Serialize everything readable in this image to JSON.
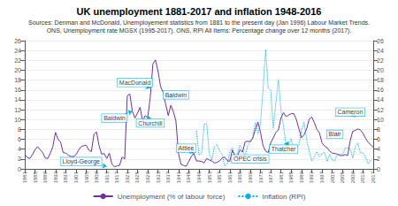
{
  "chart_data": {
    "type": "line",
    "title": "UK unemployment 1881-2017 and inflation 1948-2016",
    "subtitle": [
      "Sources: Denman and McDonald, Unemployement statistics from 1881 to the present day (Jan 1996) Labour Market Trends.",
      "ONS, Unemployment rate MGSX (1995-2017). ONS, RPI All Items: Percentage change over 12 months (2017)."
    ],
    "series": [
      {
        "name": "Unemployment (% of labour force)",
        "color": "#7030a0",
        "line_style": "solid",
        "x": [
          1881,
          1882,
          1883,
          1884,
          1885,
          1886,
          1887,
          1888,
          1889,
          1890,
          1891,
          1892,
          1893,
          1894,
          1895,
          1896,
          1897,
          1898,
          1899,
          1900,
          1901,
          1902,
          1903,
          1904,
          1905,
          1906,
          1907,
          1908,
          1909,
          1910,
          1911,
          1912,
          1913,
          1914,
          1915,
          1916,
          1917,
          1918,
          1919,
          1920,
          1921,
          1922,
          1923,
          1924,
          1925,
          1926,
          1927,
          1928,
          1929,
          1930,
          1931,
          1932,
          1933,
          1934,
          1935,
          1936,
          1937,
          1938,
          1939,
          1940,
          1941,
          1942,
          1943,
          1944,
          1945,
          1946,
          1947,
          1948,
          1949,
          1950,
          1951,
          1952,
          1953,
          1954,
          1955,
          1956,
          1957,
          1958,
          1959,
          1960,
          1961,
          1962,
          1963,
          1964,
          1965,
          1966,
          1967,
          1968,
          1969,
          1970,
          1971,
          1972,
          1973,
          1974,
          1975,
          1976,
          1977,
          1978,
          1979,
          1980,
          1981,
          1982,
          1983,
          1984,
          1985,
          1986,
          1987,
          1988,
          1989,
          1990,
          1991,
          1992,
          1993,
          1994,
          1995,
          1996,
          1997,
          1998,
          1999,
          2000,
          2001,
          2002,
          2003,
          2004,
          2005,
          2006,
          2007,
          2008,
          2009,
          2010,
          2011,
          2012,
          2013,
          2014,
          2015,
          2016,
          2017
        ],
        "values": [
          2.9,
          2.3,
          2.1,
          2.9,
          3.9,
          4.5,
          3.9,
          3.3,
          2.2,
          2.1,
          3.2,
          4.6,
          7.4,
          6.0,
          5.4,
          3.3,
          3.2,
          2.8,
          2.5,
          2.5,
          2.9,
          3.8,
          4.5,
          4.7,
          4.8,
          3.8,
          3.5,
          7.0,
          7.5,
          4.7,
          3.0,
          3.1,
          2.1,
          3.2,
          1.0,
          0.4,
          0.6,
          0.7,
          2.4,
          2.0,
          14.8,
          15.2,
          11.7,
          10.3,
          11.3,
          12.5,
          9.7,
          10.8,
          10.4,
          14.6,
          21.3,
          22.1,
          19.9,
          16.7,
          15.5,
          13.1,
          10.8,
          12.9,
          11.6,
          9.7,
          3.1,
          0.9,
          0.7,
          0.5,
          1.5,
          2.5,
          3.1,
          1.6,
          1.6,
          1.5,
          1.2,
          2.1,
          1.8,
          1.6,
          1.2,
          1.3,
          1.6,
          2.2,
          2.4,
          1.7,
          1.5,
          3.8,
          2.7,
          2.6,
          3.9,
          3.4,
          5.5,
          5.6,
          5.5,
          6.3,
          8.0,
          9.5,
          7.4,
          4.7,
          3.6,
          3.3,
          5.3,
          6.3,
          7.4,
          7.9,
          10.4,
          11.4,
          10.6,
          10.9,
          11.2,
          11.2,
          10.0,
          8.1,
          6.3,
          6.9,
          8.1,
          10.1,
          10.5,
          9.4,
          8.0,
          7.3,
          5.3,
          4.6,
          4.3,
          3.6,
          3.2,
          3.1,
          3.0,
          2.7,
          2.7,
          2.9,
          2.7,
          5.7,
          7.6,
          7.8,
          8.1,
          7.9,
          7.2,
          6.2,
          5.4,
          4.9,
          4.4
        ]
      },
      {
        "name": "Inflation (RPI)",
        "color": "#00b0f0",
        "line_style": "dotted",
        "axis": "y2",
        "x": [
          1948,
          1949,
          1950,
          1951,
          1952,
          1953,
          1954,
          1955,
          1956,
          1957,
          1958,
          1959,
          1960,
          1961,
          1962,
          1963,
          1964,
          1965,
          1966,
          1967,
          1968,
          1969,
          1970,
          1971,
          1972,
          1973,
          1974,
          1975,
          1976,
          1977,
          1978,
          1979,
          1980,
          1981,
          1982,
          1983,
          1984,
          1985,
          1986,
          1987,
          1988,
          1989,
          1990,
          1991,
          1992,
          1993,
          1994,
          1995,
          1996,
          1997,
          1998,
          1999,
          2000,
          2001,
          2002,
          2003,
          2004,
          2005,
          2006,
          2007,
          2008,
          2009,
          2010,
          2011,
          2012,
          2013,
          2014,
          2015,
          2016
        ],
        "values": [
          7.7,
          2.8,
          3.1,
          9.0,
          9.2,
          3.1,
          1.8,
          4.5,
          4.9,
          3.7,
          3.0,
          0.6,
          1.0,
          3.4,
          4.3,
          2.0,
          3.3,
          4.8,
          3.9,
          2.5,
          4.7,
          5.4,
          6.4,
          9.4,
          7.1,
          9.2,
          16.1,
          24.2,
          16.5,
          15.9,
          8.3,
          13.4,
          18.0,
          11.9,
          8.6,
          4.6,
          5.0,
          6.1,
          3.4,
          4.1,
          4.9,
          7.8,
          9.5,
          5.9,
          3.7,
          1.6,
          2.4,
          3.5,
          2.4,
          3.1,
          3.4,
          1.5,
          3.0,
          1.8,
          1.7,
          2.9,
          3.0,
          2.8,
          4.2,
          4.3,
          4.0,
          2.2,
          4.6,
          5.2,
          3.2,
          3.3,
          2.4,
          1.0,
          1.8
        ]
      }
    ],
    "xlim": [
      1881,
      2017
    ],
    "xticks": [
      1881,
      1885,
      1889,
      1893,
      1897,
      1901,
      1905,
      1909,
      1913,
      1917,
      1921,
      1925,
      1929,
      1933,
      1937,
      1941,
      1945,
      1949,
      1953,
      1957,
      1961,
      1965,
      1969,
      1973,
      1977,
      1981,
      1985,
      1989,
      1993,
      1997,
      2001,
      2005,
      2009,
      2013,
      2017
    ],
    "ylim": [
      0,
      26
    ],
    "yticks": [
      0,
      2,
      4,
      6,
      8,
      10,
      12,
      14,
      16,
      18,
      20,
      22,
      24,
      26
    ],
    "y2lim": [
      0,
      26
    ],
    "y2ticks": [
      0,
      2,
      4,
      6,
      8,
      10,
      12,
      14,
      16,
      18,
      20,
      22,
      24,
      26
    ],
    "grid": true,
    "legend": "bottom",
    "annotations": [
      {
        "text": "Lloyd-George",
        "x": 1913,
        "y": 0.5,
        "text_x": 1903,
        "text_y": 1.5
      },
      {
        "text": "Baldwin",
        "x": 1923,
        "y": 11.7,
        "text_x": 1916,
        "text_y": 10.3
      },
      {
        "text": "MacDonald",
        "x": 1930,
        "y": 16.4,
        "text_x": 1924,
        "text_y": 17.5
      },
      {
        "text": "Churchill",
        "x": 1929,
        "y": 10.8,
        "text_x": 1930,
        "text_y": 9.3
      },
      {
        "text": "Baldwin",
        "x": 1937,
        "y": 14.5,
        "text_x": 1940,
        "text_y": 15.0
      },
      {
        "text": "Attlee",
        "x": 1947,
        "y": 3.1,
        "text_x": 1944,
        "text_y": 4.2
      },
      {
        "text": "OPEC crisis",
        "x": 1973,
        "y": 2.7,
        "text_x": 1969,
        "text_y": 2.0
      },
      {
        "text": "Thatcher",
        "x": 1984,
        "y": 5.5,
        "text_x": 1982,
        "text_y": 4.0
      },
      {
        "text": "Blair",
        "x": 2004,
        "y": 7.3,
        "text_x": 2002,
        "text_y": 7.0
      },
      {
        "text": "Cameron",
        "x": 2010,
        "y": 10.5,
        "text_x": 2008,
        "text_y": 11.5
      }
    ]
  }
}
